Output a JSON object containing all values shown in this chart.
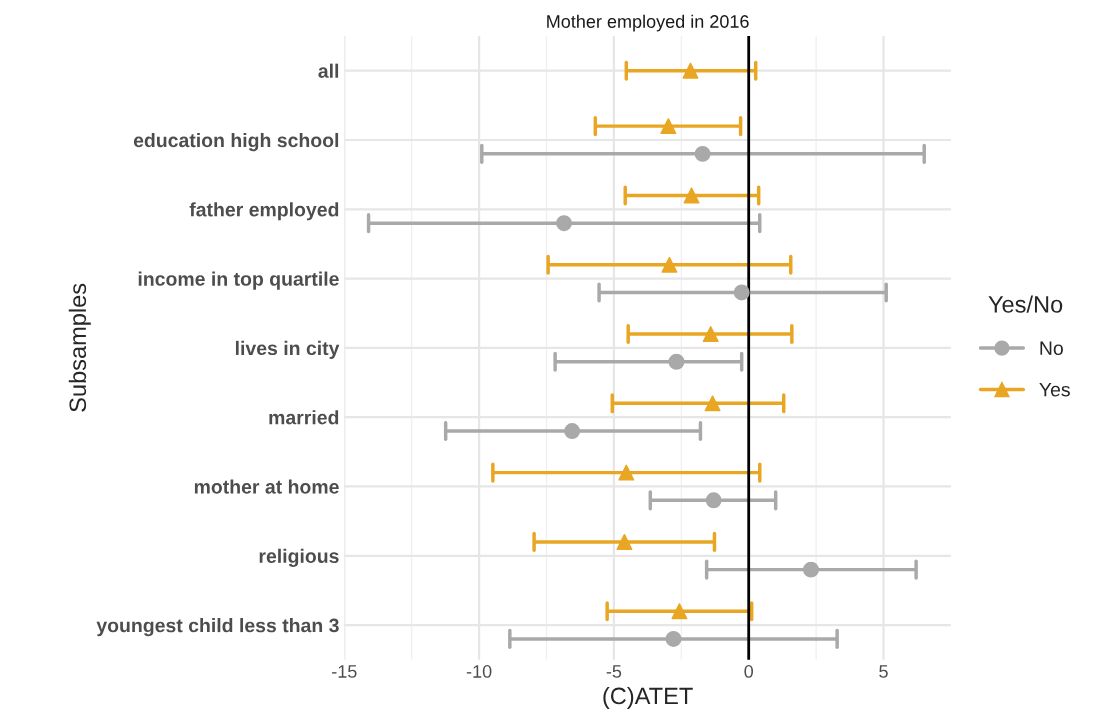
{
  "chart_data": {
    "type": "scatter",
    "orientation": "horizontal",
    "title": "Mother employed in 2016",
    "xlabel": "(C)ATET",
    "ylabel": "Subsamples",
    "legend_title": "Yes/No",
    "legend": "right",
    "categories": [
      "all",
      "education high school",
      "father employed",
      "income in top quartile",
      "lives in city",
      "married",
      "mother at home",
      "religious",
      "youngest child less than 3"
    ],
    "series": [
      {
        "name": "No",
        "color": "#a9a9a9",
        "marker": "circle",
        "values": [
          null,
          -1.71,
          -6.85,
          -0.26,
          -2.68,
          -6.55,
          -1.3,
          2.31,
          -2.79
        ],
        "errors": [
          null,
          [
            -9.9,
            6.51
          ],
          [
            -14.1,
            0.41
          ],
          [
            -5.55,
            5.1
          ],
          [
            -7.18,
            -0.26
          ],
          [
            -11.24,
            -1.79
          ],
          [
            -3.65,
            1.0
          ],
          [
            -1.56,
            6.21
          ],
          [
            -8.86,
            3.28
          ]
        ]
      },
      {
        "name": "Yes",
        "color": "#e8a623",
        "marker": "triangle",
        "values": [
          -2.16,
          -2.98,
          -2.12,
          -2.94,
          -1.41,
          -1.34,
          -4.54,
          -4.61,
          -2.57
        ],
        "errors": [
          [
            -4.54,
            0.26
          ],
          [
            -5.69,
            -0.3
          ],
          [
            -4.58,
            0.37
          ],
          [
            -7.44,
            1.56
          ],
          [
            -4.47,
            1.6
          ],
          [
            -5.06,
            1.3
          ],
          [
            -9.49,
            0.41
          ],
          [
            -7.96,
            -1.27
          ],
          [
            -5.25,
            0.11
          ]
        ]
      }
    ],
    "xlim": [
      -15,
      7.5
    ],
    "xticks": [
      -15,
      -10,
      -5,
      0,
      5
    ],
    "grid": true,
    "ref_lines": [
      {
        "axis": "x",
        "value": 0,
        "color": "#000000"
      }
    ]
  }
}
